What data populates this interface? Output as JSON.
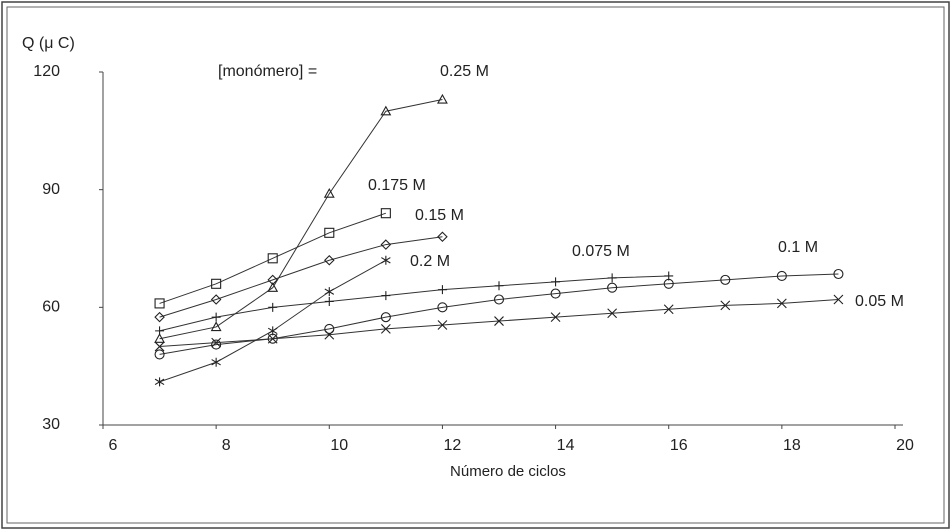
{
  "chart_data": {
    "type": "line",
    "y_label": "Q (μ  C)",
    "x_label": "Número de ciclos",
    "annotation": "[monómero] =",
    "xlim": [
      6,
      20
    ],
    "xticks": [
      6,
      8,
      10,
      12,
      14,
      16,
      18,
      20
    ],
    "ylim": [
      30,
      120
    ],
    "yticks": [
      30,
      60,
      90,
      120
    ],
    "grid": false,
    "series": [
      {
        "name": "0.25 M",
        "color": "#222222",
        "marker": "triangle",
        "x": [
          7,
          8,
          9,
          10,
          11,
          12
        ],
        "values": [
          52,
          55,
          65,
          89,
          110,
          113
        ]
      },
      {
        "name": "0.175 M",
        "color": "#222222",
        "marker": "square",
        "x": [
          7,
          8,
          9,
          10,
          11
        ],
        "values": [
          61,
          66,
          72.5,
          79,
          84
        ]
      },
      {
        "name": "0.15 M",
        "color": "#222222",
        "marker": "diamond",
        "x": [
          7,
          8,
          9,
          10,
          11,
          12
        ],
        "values": [
          57.5,
          62,
          67,
          72,
          76,
          78
        ]
      },
      {
        "name": "0.2 M",
        "color": "#222222",
        "marker": "asterisk",
        "x": [
          7,
          8,
          9,
          10,
          11
        ],
        "values": [
          41,
          46,
          54,
          64,
          72
        ]
      },
      {
        "name": "0.075 M",
        "color": "#222222",
        "marker": "plus",
        "x": [
          7,
          8,
          9,
          10,
          11,
          12,
          13,
          14,
          15,
          16
        ],
        "values": [
          54,
          57.5,
          60,
          61.5,
          63,
          64.5,
          65.5,
          66.5,
          67.5,
          68
        ]
      },
      {
        "name": "0.1 M",
        "color": "#222222",
        "marker": "circle",
        "x": [
          7,
          8,
          9,
          10,
          11,
          12,
          13,
          14,
          15,
          16,
          17,
          18,
          19
        ],
        "values": [
          48,
          50.5,
          52,
          54.5,
          57.5,
          60,
          62,
          63.5,
          65,
          66,
          67,
          68,
          68.5
        ]
      },
      {
        "name": "0.05 M",
        "color": "#222222",
        "marker": "x",
        "x": [
          7,
          8,
          9,
          10,
          11,
          12,
          13,
          14,
          15,
          16,
          17,
          18,
          19
        ],
        "values": [
          50,
          51,
          52,
          53,
          54.5,
          55.5,
          56.5,
          57.5,
          58.5,
          59.5,
          60.5,
          61,
          62
        ]
      }
    ]
  }
}
